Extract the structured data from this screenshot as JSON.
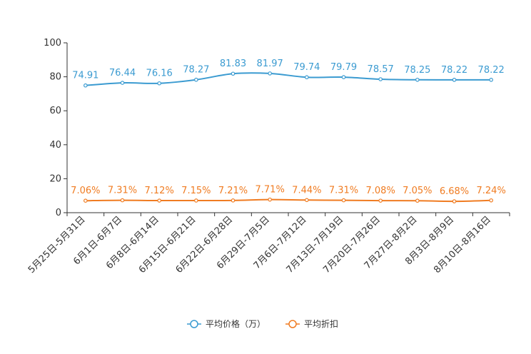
{
  "chart_data": {
    "type": "line",
    "categories": [
      "5月25日-5月31日",
      "6月1日-6月7日",
      "6月8日-6月14日",
      "6月15日-6月21日",
      "6月22日-6月28日",
      "6月29日-7月5日",
      "7月6日-7月12日",
      "7月13日-7月19日",
      "7月20日-7月26日",
      "7月27日-8月2日",
      "8月3日-8月9日",
      "8月10日-8月16日"
    ],
    "ylim": [
      0,
      100
    ],
    "yticks": [
      0,
      20,
      40,
      60,
      80,
      100
    ],
    "series": [
      {
        "name": "平均价格（万）",
        "color": "#3b9bd1",
        "values": [
          74.91,
          76.44,
          76.16,
          78.27,
          81.83,
          81.97,
          79.74,
          79.79,
          78.57,
          78.25,
          78.22,
          78.22
        ],
        "labels": [
          "74.91",
          "76.44",
          "76.16",
          "78.27",
          "81.83",
          "81.97",
          "79.74",
          "79.79",
          "78.57",
          "78.25",
          "78.22",
          "78.22"
        ]
      },
      {
        "name": "平均折扣",
        "color": "#f07c22",
        "values": [
          7.06,
          7.31,
          7.12,
          7.15,
          7.21,
          7.71,
          7.44,
          7.31,
          7.08,
          7.05,
          6.68,
          7.24
        ],
        "labels": [
          "7.06%",
          "7.31%",
          "7.12%",
          "7.15%",
          "7.21%",
          "7.71%",
          "7.44%",
          "7.31%",
          "7.08%",
          "7.05%",
          "6.68%",
          "7.24%"
        ]
      }
    ],
    "legend_position": "bottom-center"
  }
}
